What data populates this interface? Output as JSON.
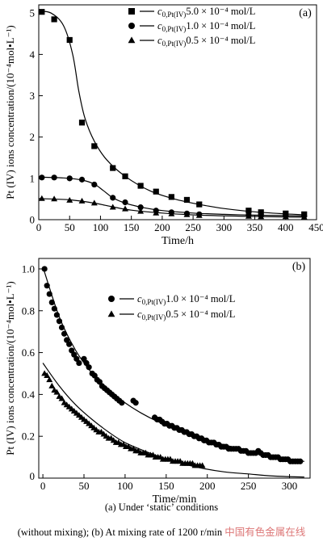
{
  "chart_data": [
    {
      "type": "scatter",
      "panel_label": "(a)",
      "xlabel": "Time/h",
      "ylabel": "Pt (IV) ions concentration/(10⁻⁴mol•L⁻¹)",
      "xlim": [
        0,
        450
      ],
      "ylim": [
        0,
        5.2
      ],
      "xticks": [
        0,
        50,
        100,
        150,
        200,
        250,
        300,
        350,
        400,
        450
      ],
      "yticks": [
        0,
        1,
        2,
        3,
        4,
        5
      ],
      "legend_position": "top-right",
      "grid": false,
      "series": [
        {
          "name": "c0,Pt(IV)=5.0 × 10⁻⁴ mol/L",
          "marker": "square",
          "x": [
            5,
            25,
            50,
            70,
            90,
            120,
            140,
            165,
            190,
            215,
            240,
            260,
            340,
            360,
            400,
            430
          ],
          "y": [
            5.03,
            4.85,
            4.35,
            2.35,
            1.78,
            1.25,
            1.05,
            0.82,
            0.68,
            0.55,
            0.48,
            0.37,
            0.22,
            0.18,
            0.15,
            0.13
          ],
          "fit_x": [
            0,
            20,
            40,
            55,
            65,
            75,
            90,
            110,
            140,
            180,
            220,
            260,
            300,
            350,
            400,
            430
          ],
          "fit_y": [
            5.05,
            5.0,
            4.7,
            4.0,
            3.1,
            2.45,
            1.9,
            1.45,
            1.05,
            0.7,
            0.5,
            0.37,
            0.27,
            0.19,
            0.14,
            0.12
          ]
        },
        {
          "name": "c0,Pt(IV)=1.0 × 10⁻⁴ mol/L",
          "marker": "circle",
          "x": [
            5,
            25,
            50,
            70,
            90,
            120,
            140,
            165,
            190,
            215,
            240,
            260,
            340,
            360,
            400,
            430
          ],
          "y": [
            1.02,
            1.02,
            1.0,
            0.97,
            0.85,
            0.53,
            0.42,
            0.3,
            0.22,
            0.18,
            0.15,
            0.13,
            0.11,
            0.1,
            0.1,
            0.09
          ],
          "fit_x": [
            0,
            40,
            70,
            90,
            105,
            120,
            140,
            170,
            200,
            250,
            300,
            350,
            400,
            430
          ],
          "fit_y": [
            1.03,
            1.01,
            0.96,
            0.86,
            0.7,
            0.53,
            0.4,
            0.29,
            0.22,
            0.16,
            0.13,
            0.11,
            0.1,
            0.09
          ]
        },
        {
          "name": "c0,Pt(IV)=0.5 × 10⁻⁴ mol/L",
          "marker": "triangle",
          "x": [
            5,
            25,
            50,
            70,
            90,
            120,
            140,
            165,
            190,
            215,
            240,
            260,
            340,
            360,
            400,
            430
          ],
          "y": [
            0.51,
            0.5,
            0.47,
            0.45,
            0.4,
            0.3,
            0.26,
            0.2,
            0.16,
            0.14,
            0.12,
            0.1,
            0.08,
            0.07,
            0.07,
            0.06
          ],
          "fit_x": [
            0,
            50,
            90,
            120,
            150,
            200,
            260,
            340,
            430
          ],
          "fit_y": [
            0.51,
            0.48,
            0.4,
            0.31,
            0.23,
            0.16,
            0.11,
            0.08,
            0.06
          ]
        }
      ]
    },
    {
      "type": "scatter",
      "panel_label": "(b)",
      "xlabel": "Time/min",
      "ylabel": "Pt (IV) ions concentration/(10⁻⁴mol•L⁻¹)",
      "xlim": [
        -5,
        325
      ],
      "ylim": [
        0,
        1.05
      ],
      "xticks": [
        0,
        50,
        100,
        150,
        200,
        250,
        300
      ],
      "yticks": [
        0.2,
        0.4,
        0.6,
        0.8,
        1.0
      ],
      "ytick_labels": [
        "0.2",
        "0.4",
        "0.6",
        "0.8",
        "1.0"
      ],
      "extra_ytick_labels": [
        "0"
      ],
      "legend_position": "right",
      "grid": false,
      "series": [
        {
          "name": "c0,Pt(IV)=1.0 × 10⁻⁴ mol/L",
          "marker": "circle",
          "x": [
            2,
            5,
            8,
            11,
            14,
            17,
            20,
            23,
            26,
            29,
            32,
            35,
            38,
            41,
            44,
            50,
            53,
            56,
            60,
            63,
            66,
            69,
            72,
            75,
            78,
            81,
            84,
            87,
            90,
            93,
            96,
            110,
            113,
            136,
            139,
            142,
            145,
            148,
            151,
            154,
            157,
            160,
            163,
            166,
            169,
            172,
            175,
            178,
            181,
            184,
            187,
            190,
            193,
            196,
            199,
            202,
            205,
            208,
            211,
            214,
            217,
            220,
            223,
            226,
            229,
            232,
            235,
            238,
            241,
            244,
            247,
            250,
            253,
            256,
            259,
            262,
            265,
            268,
            271,
            274,
            277,
            280,
            283,
            286,
            289,
            292,
            295,
            298,
            301,
            304,
            307,
            310,
            313
          ],
          "y": [
            1.0,
            0.92,
            0.88,
            0.84,
            0.81,
            0.78,
            0.75,
            0.72,
            0.69,
            0.66,
            0.64,
            0.61,
            0.59,
            0.57,
            0.55,
            0.57,
            0.55,
            0.53,
            0.5,
            0.49,
            0.47,
            0.46,
            0.44,
            0.43,
            0.42,
            0.41,
            0.4,
            0.39,
            0.38,
            0.37,
            0.36,
            0.37,
            0.36,
            0.29,
            0.28,
            0.28,
            0.27,
            0.26,
            0.26,
            0.25,
            0.25,
            0.24,
            0.24,
            0.23,
            0.23,
            0.22,
            0.22,
            0.21,
            0.21,
            0.2,
            0.2,
            0.19,
            0.19,
            0.18,
            0.18,
            0.17,
            0.17,
            0.17,
            0.16,
            0.16,
            0.15,
            0.15,
            0.15,
            0.14,
            0.14,
            0.14,
            0.14,
            0.14,
            0.13,
            0.13,
            0.13,
            0.12,
            0.12,
            0.12,
            0.12,
            0.13,
            0.12,
            0.11,
            0.11,
            0.11,
            0.1,
            0.1,
            0.1,
            0.1,
            0.09,
            0.09,
            0.09,
            0.09,
            0.08,
            0.08,
            0.08,
            0.08,
            0.08
          ],
          "fit_x": [
            0,
            20,
            40,
            60,
            80,
            100,
            120,
            140,
            160,
            180,
            200,
            220,
            240,
            260,
            280,
            300,
            318
          ],
          "fit_y": [
            1.01,
            0.77,
            0.61,
            0.5,
            0.42,
            0.36,
            0.31,
            0.27,
            0.24,
            0.21,
            0.18,
            0.16,
            0.14,
            0.12,
            0.1,
            0.09,
            0.08
          ]
        },
        {
          "name": "c0,Pt(IV)=0.5 × 10⁻⁴ mol/L",
          "marker": "triangle",
          "x": [
            2,
            5,
            8,
            11,
            14,
            17,
            20,
            23,
            26,
            29,
            32,
            35,
            38,
            41,
            44,
            47,
            50,
            53,
            56,
            59,
            62,
            65,
            68,
            71,
            74,
            77,
            80,
            83,
            86,
            89,
            92,
            95,
            98,
            101,
            104,
            107,
            110,
            113,
            116,
            119,
            122,
            125,
            128,
            131,
            134,
            137,
            140,
            143,
            146,
            149,
            152,
            155,
            158,
            161,
            164,
            167,
            170,
            173,
            176,
            179,
            182,
            185,
            188,
            191,
            194
          ],
          "y": [
            0.5,
            0.49,
            0.47,
            0.44,
            0.42,
            0.41,
            0.39,
            0.38,
            0.36,
            0.35,
            0.34,
            0.33,
            0.32,
            0.31,
            0.3,
            0.29,
            0.28,
            0.27,
            0.26,
            0.25,
            0.24,
            0.23,
            0.22,
            0.22,
            0.21,
            0.2,
            0.19,
            0.19,
            0.18,
            0.17,
            0.17,
            0.16,
            0.16,
            0.15,
            0.15,
            0.14,
            0.14,
            0.13,
            0.13,
            0.12,
            0.12,
            0.12,
            0.11,
            0.11,
            0.11,
            0.1,
            0.1,
            0.1,
            0.09,
            0.09,
            0.09,
            0.09,
            0.08,
            0.08,
            0.08,
            0.08,
            0.07,
            0.07,
            0.07,
            0.07,
            0.07,
            0.06,
            0.06,
            0.06,
            0.06
          ],
          "fit_x": [
            0,
            20,
            40,
            60,
            80,
            100,
            130,
            160,
            190,
            220,
            250,
            280,
            318
          ],
          "fit_y": [
            0.55,
            0.44,
            0.35,
            0.28,
            0.22,
            0.17,
            0.12,
            0.08,
            0.05,
            0.03,
            0.02,
            0.01,
            0.005
          ]
        }
      ]
    }
  ],
  "caption": {
    "line1": "(a)  Under ‘static’ conditions",
    "line2": "(without mixing); (b) At mixing rate of 1200 r/min",
    "watermark": "中国有色金属在线"
  }
}
